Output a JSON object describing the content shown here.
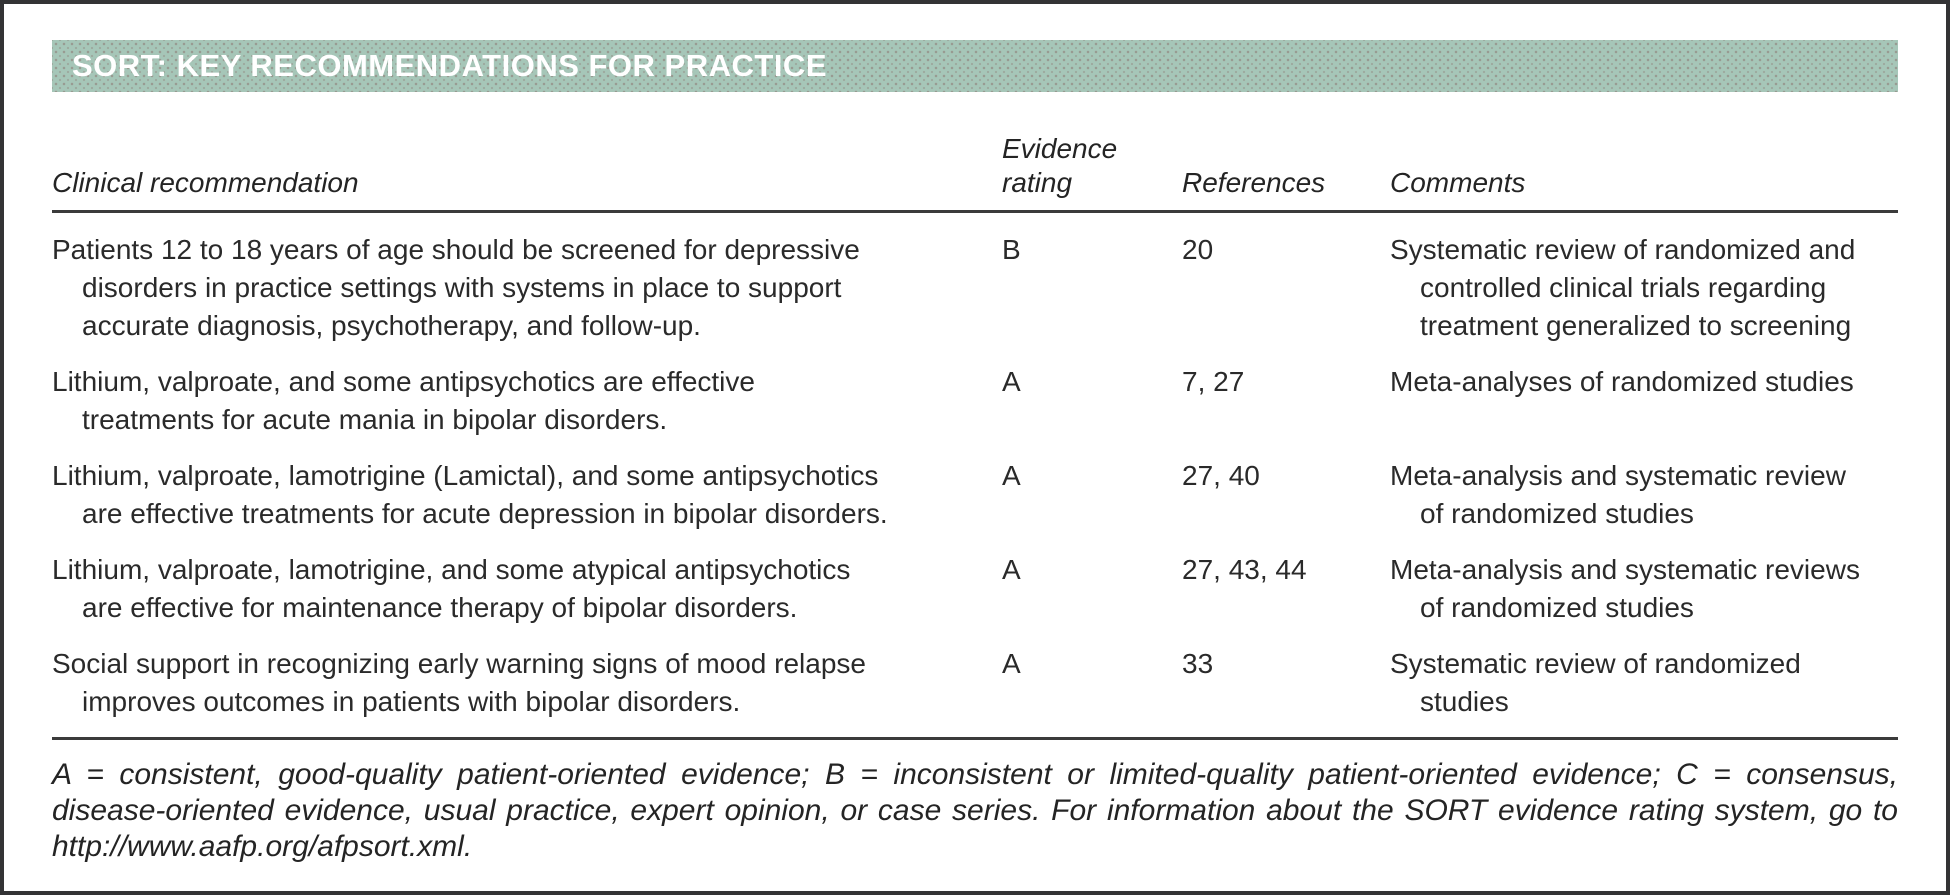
{
  "figure": {
    "title": "SORT: KEY RECOMMENDATIONS FOR PRACTICE",
    "columns": {
      "recommendation": "Clinical recommendation",
      "rating": "Evidence\nrating",
      "references": "References",
      "comments": "Comments"
    },
    "rows": [
      {
        "recommendation": "Patients 12 to 18 years of age should be screened for depressive\ndisorders in practice settings with systems in place to support\naccurate diagnosis, psychotherapy, and follow-up.",
        "rating": "B",
        "references": "20",
        "comments": "Systematic review of randomized and\ncontrolled clinical trials regarding\ntreatment generalized to screening"
      },
      {
        "recommendation": "Lithium, valproate, and some antipsychotics are effective\ntreatments for acute mania in bipolar disorders.",
        "rating": "A",
        "references": "7, 27",
        "comments": "Meta-analyses of randomized studies"
      },
      {
        "recommendation": "Lithium, valproate, lamotrigine (Lamictal), and some antipsychotics\nare effective treatments for acute depression in bipolar disorders.",
        "rating": "A",
        "references": "27, 40",
        "comments": "Meta-analysis and systematic review\nof randomized studies"
      },
      {
        "recommendation": "Lithium, valproate, lamotrigine, and some atypical antipsychotics\nare effective for maintenance therapy of bipolar disorders.",
        "rating": "A",
        "references": "27, 43, 44",
        "comments": "Meta-analysis and systematic reviews\nof randomized studies"
      },
      {
        "recommendation": "Social support in recognizing early warning signs of mood relapse\nimproves outcomes in patients with bipolar disorders.",
        "rating": "A",
        "references": "33",
        "comments": "Systematic review of randomized\nstudies"
      }
    ],
    "footnote": "A = consistent, good-quality patient-oriented evidence; B = inconsistent or limited-quality patient-oriented evidence; C = consensus, disease-oriented evidence, usual practice, expert opinion, or case series. For information about the SORT evidence rating system, go to http://www.aafp.org/afpsort.xml.",
    "colors": {
      "header_bar": "#a6c6b8",
      "rule": "#3b3b3b",
      "text": "#2a2a2a",
      "title_text": "#ffffff"
    }
  }
}
